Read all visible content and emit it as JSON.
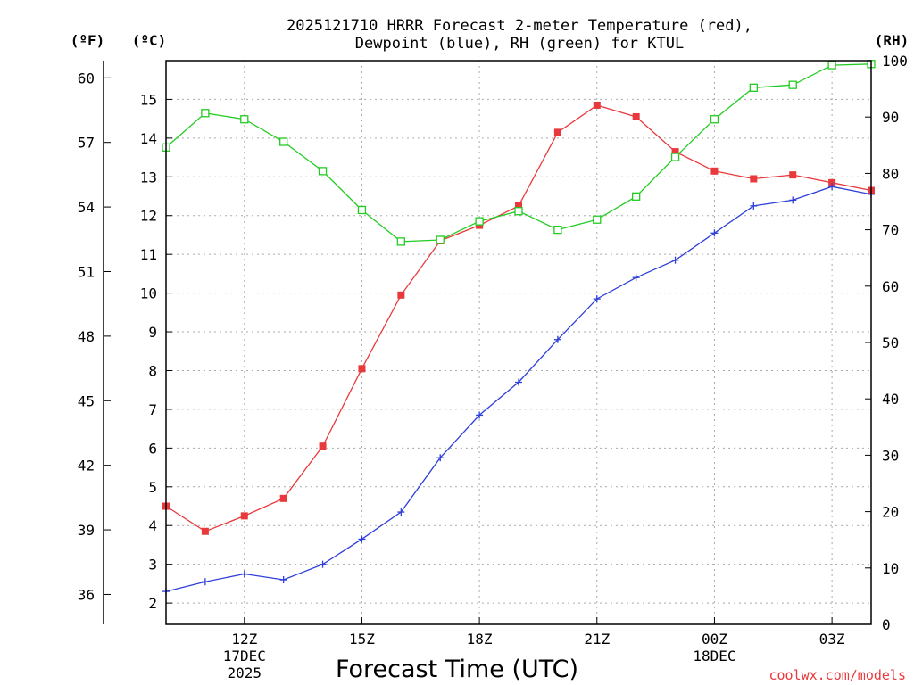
{
  "chart_data": {
    "type": "line",
    "title_line1": "2025121710 HRRR Forecast 2-meter Temperature (red),",
    "title_line2": "Dewpoint (blue), RH (green) for KTUL",
    "xlabel": "Forecast Time (UTC)",
    "credit": "coolwx.com/models",
    "units": {
      "fahrenheit": "(ºF)",
      "celsius": "(ºC)",
      "rh": "(RH)"
    },
    "x_hours": [
      10,
      11,
      12,
      13,
      14,
      15,
      16,
      17,
      18,
      19,
      20,
      21,
      22,
      23,
      24,
      25,
      26,
      27,
      28
    ],
    "xlim": [
      10,
      28
    ],
    "x_ticks": [
      {
        "hour": 12,
        "label": "12Z",
        "date": "17DEC",
        "year": "2025"
      },
      {
        "hour": 15,
        "label": "15Z",
        "date": "",
        "year": ""
      },
      {
        "hour": 18,
        "label": "18Z",
        "date": "",
        "year": ""
      },
      {
        "hour": 21,
        "label": "21Z",
        "date": "",
        "year": ""
      },
      {
        "hour": 24,
        "label": "00Z",
        "date": "18DEC",
        "year": ""
      },
      {
        "hour": 27,
        "label": "03Z",
        "date": "",
        "year": ""
      }
    ],
    "celsius_axis": {
      "min": 1.45,
      "max": 16.0,
      "ticks": [
        2,
        3,
        4,
        5,
        6,
        7,
        8,
        9,
        10,
        11,
        12,
        13,
        14,
        15
      ]
    },
    "fahrenheit_axis": {
      "ticks": [
        36,
        39,
        42,
        45,
        48,
        51,
        54,
        57,
        60
      ]
    },
    "rh_axis": {
      "min": 0,
      "max": 100,
      "ticks": [
        0,
        10,
        20,
        30,
        40,
        50,
        60,
        70,
        80,
        90,
        100
      ]
    },
    "series": [
      {
        "name": "Temperature",
        "axis": "celsius",
        "color": "#e8393c",
        "marker": "filled-square",
        "values": [
          4.5,
          3.85,
          4.25,
          4.7,
          6.05,
          8.05,
          9.95,
          11.35,
          11.75,
          12.25,
          14.15,
          14.85,
          14.55,
          13.65,
          13.15,
          12.95,
          13.05,
          12.85,
          12.65
        ]
      },
      {
        "name": "Dewpoint",
        "axis": "celsius",
        "color": "#2e3fd9",
        "marker": "plus",
        "values": [
          2.3,
          2.55,
          2.75,
          2.6,
          3.0,
          3.65,
          4.35,
          5.75,
          6.85,
          7.7,
          8.8,
          9.85,
          10.4,
          10.85,
          11.55,
          12.25,
          12.4,
          12.75,
          12.55
        ]
      },
      {
        "name": "Relative Humidity",
        "axis": "rh",
        "color": "#22cc22",
        "marker": "open-square",
        "values": [
          84.6,
          90.7,
          89.6,
          85.6,
          80.4,
          73.5,
          67.9,
          68.2,
          71.5,
          73.3,
          70.0,
          71.8,
          75.9,
          82.9,
          89.6,
          95.2,
          95.7,
          99.2,
          99.4
        ]
      }
    ]
  }
}
